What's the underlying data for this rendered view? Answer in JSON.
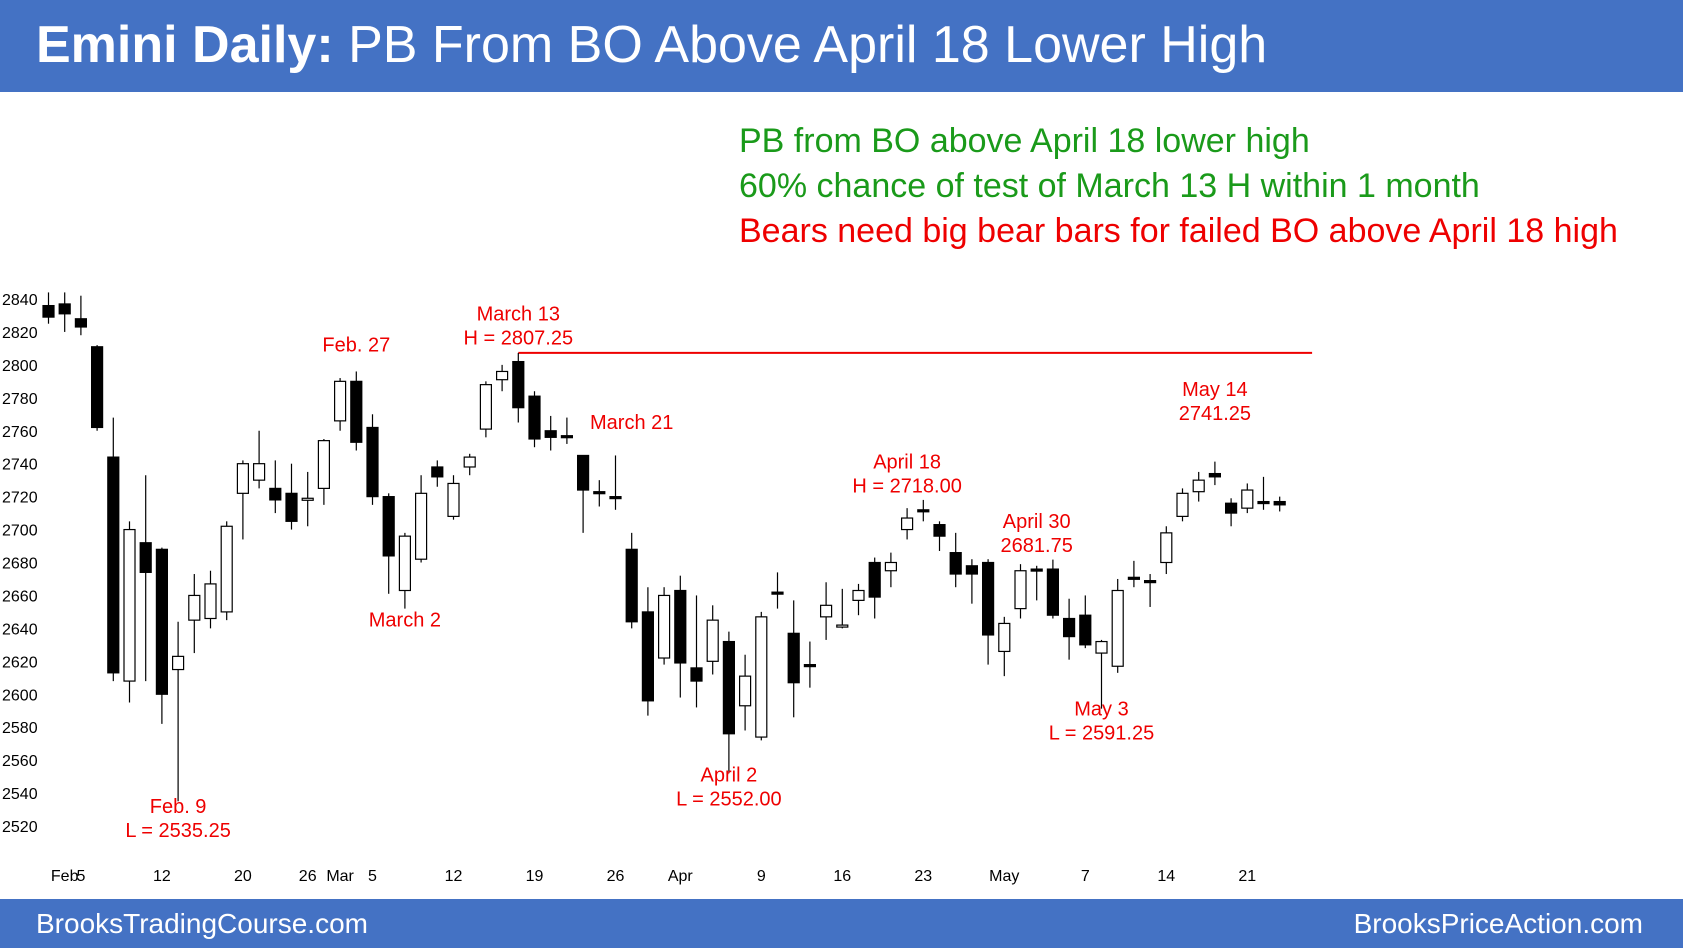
{
  "header": {
    "title_bold": "Emini Daily:",
    "title_rest": "PB From BO Above April 18 Lower High"
  },
  "notes": [
    {
      "text": "PB from BO above April 18 lower high",
      "color": "#1a9a1a"
    },
    {
      "text": "60% chance of test of March 13 H within 1 month",
      "color": "#1a9a1a"
    },
    {
      "text": "Bears need big bear bars for failed BO above April 18 high",
      "color": "#ee0000"
    }
  ],
  "footer": {
    "left": "BrooksTradingCourse.com",
    "right": "BrooksPriceAction.com"
  },
  "colors": {
    "header_bg": "#4472c4",
    "annotation": "#ee0000",
    "bull_body": "#ffffff",
    "bear_body": "#000000"
  },
  "chart_data": {
    "type": "candlestick",
    "title": "",
    "ylim": [
      2510,
      2850
    ],
    "y_ticks": [
      2520,
      2540,
      2560,
      2580,
      2600,
      2620,
      2640,
      2660,
      2680,
      2700,
      2720,
      2740,
      2760,
      2780,
      2800,
      2820,
      2840
    ],
    "x_ticks": [
      {
        "label": "Feb",
        "bar": 1
      },
      {
        "label": "5",
        "bar": 2
      },
      {
        "label": "12",
        "bar": 7
      },
      {
        "label": "20",
        "bar": 12
      },
      {
        "label": "26",
        "bar": 16
      },
      {
        "label": "Mar",
        "bar": 18
      },
      {
        "label": "5",
        "bar": 20
      },
      {
        "label": "12",
        "bar": 25
      },
      {
        "label": "19",
        "bar": 30
      },
      {
        "label": "26",
        "bar": 35
      },
      {
        "label": "Apr",
        "bar": 39
      },
      {
        "label": "9",
        "bar": 44
      },
      {
        "label": "16",
        "bar": 49
      },
      {
        "label": "23",
        "bar": 54
      },
      {
        "label": "May",
        "bar": 59
      },
      {
        "label": "7",
        "bar": 64
      },
      {
        "label": "14",
        "bar": 69
      },
      {
        "label": "21",
        "bar": 74
      }
    ],
    "grid": false,
    "candles": [
      {
        "o": 2836,
        "h": 2844,
        "l": 2825,
        "c": 2829
      },
      {
        "o": 2837,
        "h": 2844,
        "l": 2820,
        "c": 2831
      },
      {
        "o": 2828,
        "h": 2842,
        "l": 2818,
        "c": 2823
      },
      {
        "o": 2811,
        "h": 2812,
        "l": 2760,
        "c": 2762
      },
      {
        "o": 2744,
        "h": 2768,
        "l": 2608,
        "c": 2613
      },
      {
        "o": 2608,
        "h": 2705,
        "l": 2595,
        "c": 2700
      },
      {
        "o": 2692,
        "h": 2733,
        "l": 2608,
        "c": 2674
      },
      {
        "o": 2688,
        "h": 2689,
        "l": 2582,
        "c": 2600
      },
      {
        "o": 2615,
        "h": 2644,
        "l": 2535,
        "c": 2623
      },
      {
        "o": 2645,
        "h": 2673,
        "l": 2625,
        "c": 2660
      },
      {
        "o": 2646,
        "h": 2675,
        "l": 2640,
        "c": 2667
      },
      {
        "o": 2650,
        "h": 2705,
        "l": 2645,
        "c": 2702
      },
      {
        "o": 2722,
        "h": 2742,
        "l": 2694,
        "c": 2740
      },
      {
        "o": 2730,
        "h": 2760,
        "l": 2725,
        "c": 2740
      },
      {
        "o": 2725,
        "h": 2742,
        "l": 2710,
        "c": 2718
      },
      {
        "o": 2722,
        "h": 2740,
        "l": 2700,
        "c": 2705
      },
      {
        "o": 2718,
        "h": 2735,
        "l": 2702,
        "c": 2719
      },
      {
        "o": 2725,
        "h": 2755,
        "l": 2715,
        "c": 2754
      },
      {
        "o": 2766,
        "h": 2792,
        "l": 2760,
        "c": 2790
      },
      {
        "o": 2790,
        "h": 2796,
        "l": 2748,
        "c": 2753
      },
      {
        "o": 2762,
        "h": 2770,
        "l": 2715,
        "c": 2720
      },
      {
        "o": 2720,
        "h": 2722,
        "l": 2661,
        "c": 2684
      },
      {
        "o": 2663,
        "h": 2698,
        "l": 2652,
        "c": 2696
      },
      {
        "o": 2682,
        "h": 2733,
        "l": 2680,
        "c": 2722
      },
      {
        "o": 2738,
        "h": 2742,
        "l": 2726,
        "c": 2732
      },
      {
        "o": 2708,
        "h": 2733,
        "l": 2706,
        "c": 2728
      },
      {
        "o": 2738,
        "h": 2746,
        "l": 2733,
        "c": 2744
      },
      {
        "o": 2761,
        "h": 2790,
        "l": 2756,
        "c": 2788
      },
      {
        "o": 2791,
        "h": 2800,
        "l": 2784,
        "c": 2796
      },
      {
        "o": 2802,
        "h": 2807.25,
        "l": 2765,
        "c": 2774
      },
      {
        "o": 2781,
        "h": 2784,
        "l": 2750,
        "c": 2755
      },
      {
        "o": 2760,
        "h": 2769,
        "l": 2748,
        "c": 2756
      },
      {
        "o": 2757,
        "h": 2768,
        "l": 2752,
        "c": 2757
      },
      {
        "o": 2745,
        "h": 2745,
        "l": 2698,
        "c": 2724
      },
      {
        "o": 2723,
        "h": 2730,
        "l": 2714,
        "c": 2722
      },
      {
        "o": 2720,
        "h": 2745,
        "l": 2712,
        "c": 2719
      },
      {
        "o": 2688,
        "h": 2698,
        "l": 2640,
        "c": 2644
      },
      {
        "o": 2650,
        "h": 2665,
        "l": 2587,
        "c": 2596
      },
      {
        "o": 2622,
        "h": 2665,
        "l": 2618,
        "c": 2660
      },
      {
        "o": 2663,
        "h": 2672,
        "l": 2598,
        "c": 2619
      },
      {
        "o": 2616,
        "h": 2660,
        "l": 2592,
        "c": 2608
      },
      {
        "o": 2620,
        "h": 2654,
        "l": 2612,
        "c": 2645
      },
      {
        "o": 2632,
        "h": 2638,
        "l": 2552,
        "c": 2576
      },
      {
        "o": 2593,
        "h": 2624,
        "l": 2578,
        "c": 2611
      },
      {
        "o": 2574,
        "h": 2650,
        "l": 2572,
        "c": 2647
      },
      {
        "o": 2662,
        "h": 2674,
        "l": 2652,
        "c": 2662
      },
      {
        "o": 2637,
        "h": 2657,
        "l": 2586,
        "c": 2607
      },
      {
        "o": 2618,
        "h": 2632,
        "l": 2604,
        "c": 2618
      },
      {
        "o": 2647,
        "h": 2668,
        "l": 2633,
        "c": 2654
      },
      {
        "o": 2641,
        "h": 2664,
        "l": 2640,
        "c": 2642
      },
      {
        "o": 2657,
        "h": 2667,
        "l": 2648,
        "c": 2663
      },
      {
        "o": 2680,
        "h": 2683,
        "l": 2646,
        "c": 2659
      },
      {
        "o": 2675,
        "h": 2686,
        "l": 2665,
        "c": 2680
      },
      {
        "o": 2700,
        "h": 2713,
        "l": 2694,
        "c": 2707
      },
      {
        "o": 2712,
        "h": 2718,
        "l": 2705,
        "c": 2711
      },
      {
        "o": 2703,
        "h": 2705,
        "l": 2687,
        "c": 2696
      },
      {
        "o": 2686,
        "h": 2698,
        "l": 2665,
        "c": 2673
      },
      {
        "o": 2678,
        "h": 2682,
        "l": 2655,
        "c": 2673
      },
      {
        "o": 2680,
        "h": 2682,
        "l": 2618,
        "c": 2636
      },
      {
        "o": 2626,
        "h": 2647,
        "l": 2611,
        "c": 2643
      },
      {
        "o": 2652,
        "h": 2679,
        "l": 2646,
        "c": 2675
      },
      {
        "o": 2676,
        "h": 2678,
        "l": 2657,
        "c": 2676
      },
      {
        "o": 2676,
        "h": 2681.75,
        "l": 2646,
        "c": 2648
      },
      {
        "o": 2646,
        "h": 2658,
        "l": 2621,
        "c": 2635
      },
      {
        "o": 2648,
        "h": 2660,
        "l": 2628,
        "c": 2630
      },
      {
        "o": 2625,
        "h": 2633,
        "l": 2591.25,
        "c": 2632
      },
      {
        "o": 2617,
        "h": 2670,
        "l": 2613,
        "c": 2663
      },
      {
        "o": 2671,
        "h": 2681,
        "l": 2665,
        "c": 2671
      },
      {
        "o": 2669,
        "h": 2673,
        "l": 2653,
        "c": 2669
      },
      {
        "o": 2680,
        "h": 2702,
        "l": 2673,
        "c": 2698
      },
      {
        "o": 2708,
        "h": 2725,
        "l": 2705,
        "c": 2722
      },
      {
        "o": 2723,
        "h": 2735,
        "l": 2717,
        "c": 2730
      },
      {
        "o": 2734,
        "h": 2741.25,
        "l": 2727,
        "c": 2732
      },
      {
        "o": 2716,
        "h": 2719,
        "l": 2702,
        "c": 2710
      },
      {
        "o": 2713,
        "h": 2728,
        "l": 2710,
        "c": 2724
      },
      {
        "o": 2717,
        "h": 2732,
        "l": 2712,
        "c": 2717
      },
      {
        "o": 2717,
        "h": 2720,
        "l": 2711,
        "c": 2715
      }
    ],
    "h_line": {
      "value": 2807.25,
      "from_bar": 29,
      "to_bar": 78
    },
    "annotations": [
      {
        "lines": [
          "Feb. 27"
        ],
        "bar": 19,
        "value": 2808
      },
      {
        "lines": [
          "March 13",
          "H = 2807.25"
        ],
        "bar": 29,
        "value": 2827
      },
      {
        "lines": [
          "March 21"
        ],
        "bar": 36,
        "value": 2761
      },
      {
        "lines": [
          "March 2"
        ],
        "bar": 22,
        "value": 2641
      },
      {
        "lines": [
          "Feb. 9",
          "L = 2535.25"
        ],
        "bar": 8,
        "value": 2528
      },
      {
        "lines": [
          "April 2",
          "L = 2552.00"
        ],
        "bar": 42,
        "value": 2547
      },
      {
        "lines": [
          "April 18",
          "H = 2718.00"
        ],
        "bar": 53,
        "value": 2737
      },
      {
        "lines": [
          "April 30",
          "2681.75"
        ],
        "bar": 61,
        "value": 2701
      },
      {
        "lines": [
          "May 3",
          "L = 2591.25"
        ],
        "bar": 65,
        "value": 2587
      },
      {
        "lines": [
          "May 14",
          "2741.25"
        ],
        "bar": 72,
        "value": 2781
      }
    ]
  }
}
